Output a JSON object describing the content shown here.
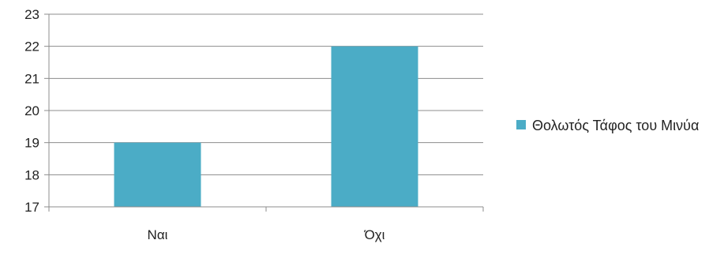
{
  "chart_data": {
    "type": "bar",
    "categories": [
      "Ναι",
      "Όχι"
    ],
    "series": [
      {
        "name": "Θολωτός Τάφος του Μινύα",
        "values": [
          19,
          22
        ],
        "color": "#4bacc6"
      }
    ],
    "ylim": [
      17,
      23
    ],
    "yticks": [
      17,
      18,
      19,
      20,
      21,
      22,
      23
    ],
    "grid": true,
    "legend": "right",
    "title": "",
    "xlabel": "",
    "ylabel": ""
  }
}
